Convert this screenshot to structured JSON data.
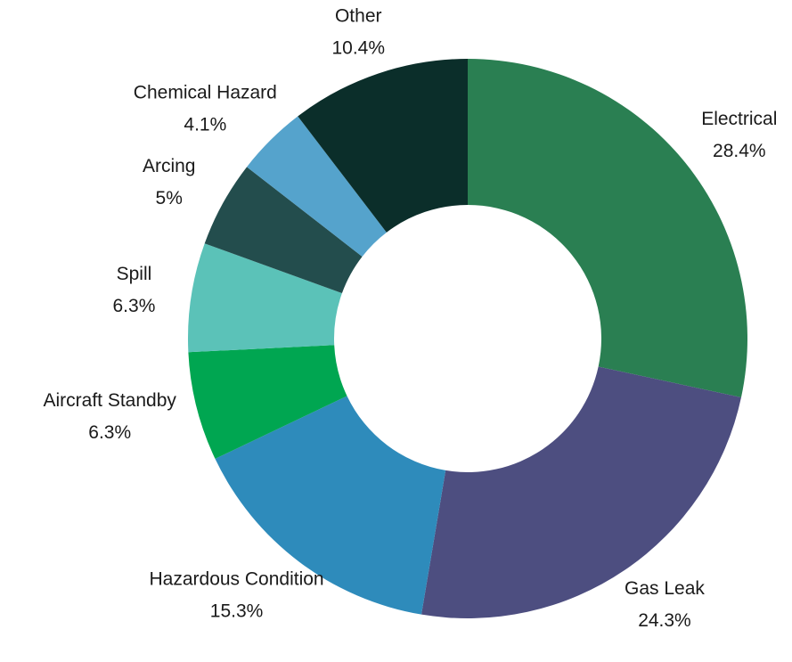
{
  "chart_data": {
    "type": "donut",
    "categories": [
      "Electrical",
      "Gas Leak",
      "Hazardous Condition",
      "Aircraft Standby",
      "Spill",
      "Arcing",
      "Chemical Hazard",
      "Other"
    ],
    "values": [
      28.4,
      24.3,
      15.3,
      6.3,
      6.3,
      5,
      4.1,
      10.4
    ],
    "value_labels": [
      "28.4%",
      "24.3%",
      "15.3%",
      "6.3%",
      "6.3%",
      "5%",
      "4.1%",
      "10.4%"
    ],
    "colors": [
      "#2a7f52",
      "#4d4e80",
      "#2e8bbb",
      "#00a651",
      "#5bc2b8",
      "#234d4d",
      "#55a3cc",
      "#0b2e2a"
    ]
  }
}
